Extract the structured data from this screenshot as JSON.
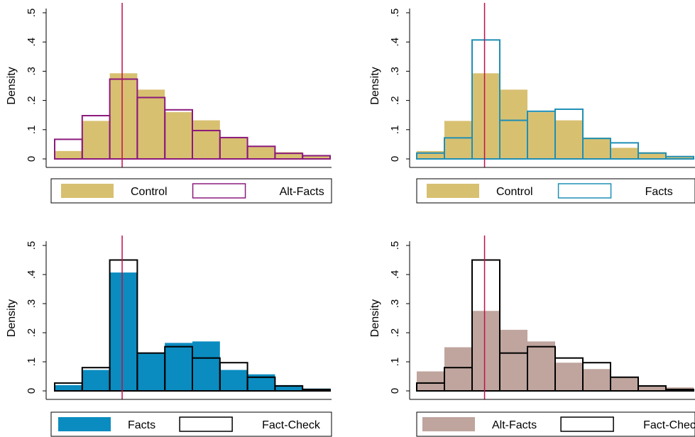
{
  "colors": {
    "control": "#d8c071",
    "alt_facts_outline": "#8b1a7d",
    "facts_outline": "#1f8fb5",
    "facts_fill": "#0a8cc0",
    "fact_check_outline": "#000000",
    "alt_facts_fill": "#bfa59e",
    "reference_line": "#c0104a"
  },
  "chart_data": [
    {
      "type": "bar",
      "ylabel": "Density",
      "yticks": [
        0,
        0.1,
        0.2,
        0.3,
        0.4,
        0.5
      ],
      "ytick_labels": [
        "0",
        ".1",
        ".2",
        ".3",
        ".4",
        ".5"
      ],
      "ylim": [
        0,
        0.53
      ],
      "bins": 10,
      "reference_line_bin": 2.45,
      "legend": [
        "Control",
        "Alt-Facts"
      ],
      "series": [
        {
          "name": "Control",
          "style": "fill",
          "color": "#d8c071",
          "values": [
            0.027,
            0.13,
            0.293,
            0.237,
            0.16,
            0.132,
            0.073,
            0.043,
            0.023,
            0.012
          ]
        },
        {
          "name": "Alt-Facts",
          "style": "outline",
          "color": "#8b1a7d",
          "values": [
            0.067,
            0.148,
            0.273,
            0.21,
            0.168,
            0.097,
            0.073,
            0.043,
            0.019,
            0.011
          ]
        }
      ]
    },
    {
      "type": "bar",
      "ylabel": "Density",
      "yticks": [
        0,
        0.1,
        0.2,
        0.3,
        0.4,
        0.5
      ],
      "ytick_labels": [
        "0",
        ".1",
        ".2",
        ".3",
        ".4",
        ".5"
      ],
      "ylim": [
        0,
        0.53
      ],
      "bins": 10,
      "reference_line_bin": 2.45,
      "legend": [
        "Control",
        "Facts"
      ],
      "series": [
        {
          "name": "Control",
          "style": "fill",
          "color": "#d8c071",
          "values": [
            0.027,
            0.13,
            0.293,
            0.237,
            0.16,
            0.132,
            0.073,
            0.038,
            0.023,
            0.01
          ]
        },
        {
          "name": "Facts",
          "style": "outline",
          "color": "#1f8fb5",
          "values": [
            0.02,
            0.072,
            0.407,
            0.132,
            0.163,
            0.17,
            0.07,
            0.055,
            0.02,
            0.008
          ]
        }
      ]
    },
    {
      "type": "bar",
      "ylabel": "Density",
      "yticks": [
        0,
        0.1,
        0.2,
        0.3,
        0.4,
        0.5
      ],
      "ytick_labels": [
        "0",
        ".1",
        ".2",
        ".3",
        ".4",
        ".5"
      ],
      "ylim": [
        0,
        0.53
      ],
      "bins": 10,
      "reference_line_bin": 2.45,
      "legend": [
        "Facts",
        "Fact-Check"
      ],
      "series": [
        {
          "name": "Facts",
          "style": "fill",
          "color": "#0a8cc0",
          "values": [
            0.02,
            0.072,
            0.407,
            0.132,
            0.165,
            0.17,
            0.072,
            0.057,
            0.02,
            0.008
          ]
        },
        {
          "name": "Fact-Check",
          "style": "outline",
          "color": "#000000",
          "values": [
            0.027,
            0.08,
            0.45,
            0.13,
            0.152,
            0.113,
            0.097,
            0.047,
            0.017,
            0.005
          ]
        }
      ]
    },
    {
      "type": "bar",
      "ylabel": "Density",
      "yticks": [
        0,
        0.1,
        0.2,
        0.3,
        0.4,
        0.5
      ],
      "ytick_labels": [
        "0",
        ".1",
        ".2",
        ".3",
        ".4",
        ".5"
      ],
      "ylim": [
        0,
        0.53
      ],
      "bins": 10,
      "reference_line_bin": 2.45,
      "legend": [
        "Alt-Facts",
        "Fact-Check"
      ],
      "series": [
        {
          "name": "Alt-Facts",
          "style": "fill",
          "color": "#bfa59e",
          "values": [
            0.067,
            0.15,
            0.275,
            0.21,
            0.17,
            0.097,
            0.075,
            0.045,
            0.015,
            0.012
          ]
        },
        {
          "name": "Fact-Check",
          "style": "outline",
          "color": "#000000",
          "values": [
            0.027,
            0.08,
            0.45,
            0.13,
            0.152,
            0.113,
            0.097,
            0.047,
            0.017,
            0.005
          ]
        }
      ]
    }
  ]
}
